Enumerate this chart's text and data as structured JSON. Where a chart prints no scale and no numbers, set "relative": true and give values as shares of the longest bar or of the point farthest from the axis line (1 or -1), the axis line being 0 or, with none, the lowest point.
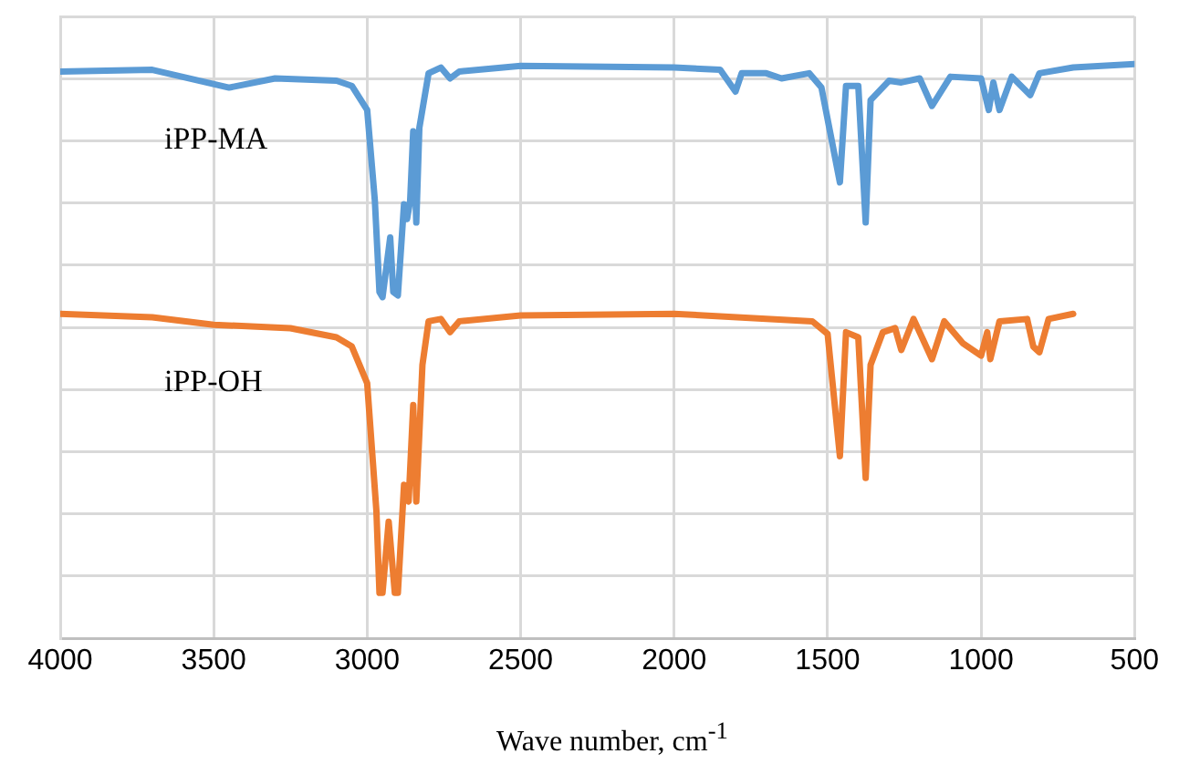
{
  "chart_data": {
    "type": "line",
    "relative": true,
    "xlabel": "Wave number, cm$^{-1}$",
    "xlim": [
      4000,
      500
    ],
    "xticks": [
      4000,
      3500,
      3000,
      2500,
      2000,
      1500,
      1000,
      500
    ],
    "grid": true,
    "legend": false,
    "tick_labels": "x",
    "marker": "none",
    "line_style": "solid",
    "series": [
      {
        "name": "iPP-MA",
        "color": "#5b9bd5",
        "x": [
          4000,
          3700,
          3450,
          3300,
          3100,
          3050,
          3000,
          2975,
          2960,
          2950,
          2925,
          2915,
          2900,
          2880,
          2870,
          2860,
          2850,
          2840,
          2830,
          2800,
          2760,
          2730,
          2700,
          2500,
          2000,
          1850,
          1800,
          1780,
          1700,
          1650,
          1560,
          1520,
          1460,
          1440,
          1400,
          1376,
          1360,
          1300,
          1260,
          1200,
          1160,
          1100,
          1000,
          975,
          960,
          940,
          900,
          840,
          810,
          700,
          500
        ],
        "values": [
          0.987,
          0.99,
          0.959,
          0.975,
          0.971,
          0.962,
          0.92,
          0.762,
          0.603,
          0.594,
          0.698,
          0.603,
          0.597,
          0.756,
          0.73,
          0.762,
          0.883,
          0.724,
          0.889,
          0.984,
          0.994,
          0.975,
          0.987,
          0.997,
          0.994,
          0.99,
          0.952,
          0.984,
          0.984,
          0.975,
          0.984,
          0.959,
          0.794,
          0.962,
          0.962,
          0.724,
          0.937,
          0.971,
          0.968,
          0.975,
          0.927,
          0.978,
          0.975,
          0.92,
          0.968,
          0.92,
          0.978,
          0.946,
          0.984,
          0.994,
          1.0
        ]
      },
      {
        "name": "iPP-OH",
        "color": "#ed7d31",
        "x": [
          4000,
          3700,
          3500,
          3250,
          3100,
          3050,
          3000,
          2970,
          2960,
          2950,
          2930,
          2910,
          2900,
          2880,
          2865,
          2850,
          2840,
          2820,
          2800,
          2760,
          2730,
          2700,
          2500,
          2000,
          1550,
          1500,
          1460,
          1440,
          1400,
          1376,
          1360,
          1320,
          1280,
          1260,
          1220,
          1160,
          1120,
          1060,
          1000,
          980,
          970,
          940,
          850,
          830,
          810,
          780,
          700
        ],
        "values": [
          0.565,
          0.559,
          0.546,
          0.54,
          0.524,
          0.508,
          0.444,
          0.222,
          0.079,
          0.079,
          0.203,
          0.079,
          0.079,
          0.267,
          0.238,
          0.406,
          0.238,
          0.476,
          0.552,
          0.556,
          0.533,
          0.552,
          0.562,
          0.565,
          0.552,
          0.53,
          0.317,
          0.533,
          0.524,
          0.279,
          0.476,
          0.533,
          0.54,
          0.502,
          0.556,
          0.486,
          0.552,
          0.514,
          0.492,
          0.533,
          0.486,
          0.552,
          0.556,
          0.508,
          0.498,
          0.556,
          0.565
        ]
      }
    ]
  }
}
